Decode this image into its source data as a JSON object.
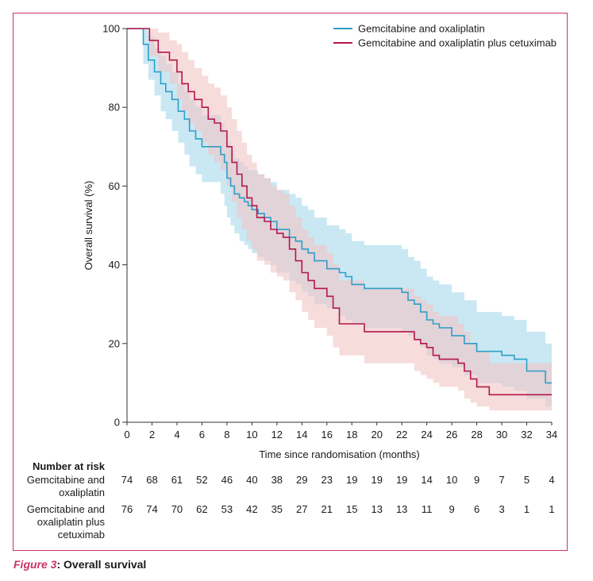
{
  "chart_data": {
    "type": "line",
    "title": "",
    "xlabel": "Time since randomisation (months)",
    "ylabel": "Overall survival (%)",
    "xlim": [
      0,
      34
    ],
    "ylim": [
      0,
      100
    ],
    "x_ticks": [
      0,
      2,
      4,
      6,
      8,
      10,
      12,
      14,
      16,
      18,
      20,
      22,
      24,
      26,
      28,
      30,
      32,
      34
    ],
    "y_ticks": [
      0,
      20,
      40,
      60,
      80,
      100
    ],
    "grid": false,
    "legend": "top-right",
    "series": [
      {
        "name": "Gemcitabine and oxaliplatin",
        "color": "#2e9ec9",
        "band_color": "#bfe4f1",
        "x": [
          0,
          1.3,
          1.7,
          2.2,
          2.7,
          3.1,
          3.6,
          4.1,
          4.6,
          5.0,
          5.5,
          6.0,
          7.5,
          7.8,
          8.0,
          8.3,
          8.6,
          9.0,
          9.4,
          9.7,
          10.0,
          10.5,
          11.0,
          11.5,
          12.0,
          13.0,
          13.5,
          14.0,
          14.5,
          15.0,
          16.0,
          17.0,
          17.5,
          18.0,
          19.0,
          21.0,
          22.0,
          22.5,
          23.0,
          23.5,
          24.0,
          24.5,
          25.0,
          26.0,
          27.0,
          28.0,
          30.0,
          31.0,
          32.0,
          33.5,
          34.0
        ],
        "y": [
          100,
          96,
          92,
          89,
          86,
          84,
          82,
          79,
          77,
          74,
          72,
          70,
          68,
          66,
          62,
          60,
          58,
          57,
          56,
          55,
          54,
          53,
          52,
          51,
          49,
          47,
          46,
          44,
          43,
          41,
          39,
          38,
          37,
          35,
          34,
          34,
          33,
          31,
          30,
          28,
          26,
          25,
          24,
          22,
          20,
          18,
          17,
          16,
          13,
          10,
          10
        ],
        "ci_lower": [
          100,
          91,
          87,
          83,
          79,
          77,
          74,
          71,
          68,
          65,
          63,
          61,
          58,
          55,
          52,
          50,
          48,
          46,
          45,
          44,
          43,
          42,
          41,
          40,
          38,
          36,
          35,
          33,
          32,
          30,
          29,
          27,
          26,
          25,
          24,
          24,
          23,
          22,
          21,
          19,
          17,
          16,
          15,
          14,
          12,
          10,
          9,
          8,
          6,
          4,
          4
        ],
        "ci_upper": [
          100,
          100,
          98,
          95,
          93,
          91,
          89,
          86,
          84,
          82,
          80,
          78,
          76,
          74,
          71,
          69,
          67,
          66,
          65,
          64,
          64,
          63,
          62,
          61,
          59,
          58,
          57,
          55,
          54,
          52,
          50,
          49,
          48,
          46,
          45,
          45,
          44,
          42,
          41,
          39,
          37,
          36,
          35,
          33,
          31,
          28,
          27,
          26,
          23,
          20,
          20
        ]
      },
      {
        "name": "Gemcitabine and oxaliplatin plus cetuximab",
        "color": "#b3174b",
        "band_color": "#f2c4c4",
        "x": [
          0,
          1.8,
          2.5,
          3.4,
          4.0,
          4.4,
          4.9,
          5.4,
          6.0,
          6.5,
          7.0,
          7.5,
          8.0,
          8.4,
          8.8,
          9.2,
          9.6,
          10.0,
          10.4,
          11.0,
          11.5,
          12.0,
          12.5,
          13.0,
          13.5,
          14.0,
          14.5,
          15.0,
          16.0,
          16.5,
          17.0,
          18.0,
          19.0,
          21.0,
          22.0,
          23.0,
          23.5,
          24.0,
          24.5,
          25.0,
          26.5,
          27.0,
          27.5,
          28.0,
          29.0,
          30.0,
          34.0
        ],
        "y": [
          100,
          97,
          94,
          92,
          89,
          86,
          84,
          82,
          80,
          77,
          76,
          74,
          70,
          66,
          63,
          60,
          57,
          55,
          52,
          51,
          49,
          48,
          47,
          44,
          41,
          38,
          36,
          34,
          32,
          29,
          25,
          25,
          23,
          23,
          23,
          21,
          20,
          19,
          17,
          16,
          15,
          13,
          11,
          9,
          7,
          7,
          7
        ],
        "ci_lower": [
          100,
          93,
          89,
          86,
          82,
          79,
          76,
          74,
          71,
          68,
          66,
          64,
          60,
          56,
          52,
          49,
          46,
          44,
          41,
          40,
          38,
          37,
          36,
          33,
          31,
          28,
          26,
          24,
          22,
          19,
          17,
          17,
          15,
          15,
          15,
          13,
          12,
          11,
          10,
          9,
          8,
          6,
          5,
          4,
          3,
          3,
          3
        ],
        "ci_upper": [
          100,
          100,
          99,
          97,
          96,
          94,
          92,
          90,
          88,
          86,
          85,
          83,
          80,
          77,
          74,
          71,
          68,
          66,
          63,
          62,
          60,
          59,
          58,
          55,
          52,
          49,
          47,
          45,
          43,
          40,
          36,
          36,
          34,
          34,
          34,
          32,
          31,
          30,
          28,
          27,
          25,
          23,
          20,
          18,
          15,
          15,
          15
        ]
      }
    ]
  },
  "risk_table": {
    "heading": "Number at risk",
    "rows": [
      {
        "label_lines": [
          "Gemcitabine and",
          "oxaliplatin"
        ],
        "values": [
          74,
          68,
          61,
          52,
          46,
          40,
          38,
          29,
          23,
          19,
          19,
          19,
          14,
          10,
          9,
          7,
          5,
          4
        ]
      },
      {
        "label_lines": [
          "Gemcitabine and",
          "oxaliplatin plus",
          "cetuximab"
        ],
        "values": [
          76,
          74,
          70,
          62,
          53,
          42,
          35,
          27,
          21,
          15,
          13,
          13,
          11,
          9,
          6,
          3,
          1,
          1
        ]
      }
    ]
  },
  "caption": {
    "figure_label": "Figure 3",
    "text": ": Overall survival"
  }
}
